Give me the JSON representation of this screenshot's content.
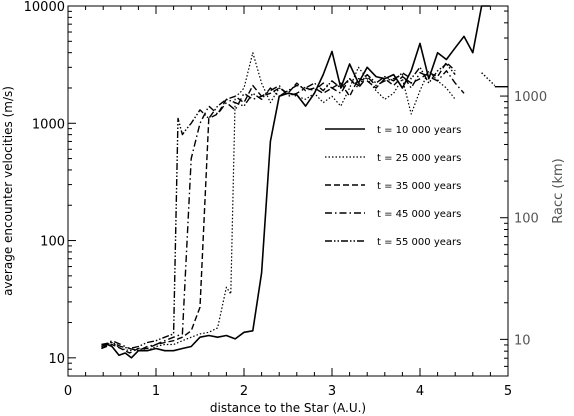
{
  "chart_data": {
    "type": "line",
    "xlabel": "distance to the Star (A.U.)",
    "ylabel": "average encounter velocities (m/s)",
    "ylabel_right": "Racc (km)",
    "xlim": [
      0,
      5
    ],
    "ylim": [
      7,
      10000
    ],
    "yscale": "log",
    "x_ticks": [
      "0",
      "1",
      "2",
      "3",
      "4",
      "5"
    ],
    "y_ticks": [
      "10",
      "100",
      "1000",
      "10000"
    ],
    "right_axis": {
      "ylim": [
        5,
        5500
      ],
      "ticks": [
        "10",
        "100",
        "1000"
      ],
      "tick_values": [
        10,
        100,
        1000
      ]
    },
    "legend_position": "center-right",
    "grid": false,
    "series": [
      {
        "name": "t = 10 000 years",
        "dash": "solid",
        "width": 1.6,
        "x": [
          0.38,
          0.45,
          0.5,
          0.58,
          0.65,
          0.72,
          0.8,
          0.9,
          1.0,
          1.1,
          1.2,
          1.3,
          1.4,
          1.5,
          1.6,
          1.7,
          1.8,
          1.9,
          2.0,
          2.1,
          2.2,
          2.3,
          2.4,
          2.5,
          2.6,
          2.7,
          2.8,
          2.9,
          3.0,
          3.1,
          3.2,
          3.3,
          3.4,
          3.5,
          3.6,
          3.7,
          3.8,
          3.9,
          4.0,
          4.1,
          4.2,
          4.3,
          4.4,
          4.5,
          4.6,
          4.7,
          4.8
        ],
        "y": [
          12,
          13,
          12.5,
          10.5,
          11,
          10,
          11.5,
          11.5,
          12,
          11.5,
          11.5,
          12,
          12.5,
          15,
          15.5,
          15,
          15.5,
          14.5,
          16.5,
          17,
          53,
          700,
          1700,
          1800,
          1750,
          1400,
          1800,
          2600,
          4100,
          2000,
          3200,
          2200,
          3000,
          2500,
          2400,
          2600,
          2000,
          2800,
          4800,
          2400,
          4000,
          3500,
          4400,
          5500,
          4000,
          10000,
          10000
        ]
      },
      {
        "name": "t = 25 000 years",
        "dash": "dotted",
        "width": 1.2,
        "x": [
          0.38,
          0.5,
          0.6,
          0.7,
          0.8,
          0.9,
          1.0,
          1.1,
          1.2,
          1.3,
          1.4,
          1.5,
          1.6,
          1.7,
          1.8,
          1.85,
          1.9,
          1.95,
          2.0,
          2.1,
          2.2,
          2.3,
          2.4,
          2.5,
          2.6,
          2.7,
          2.8,
          2.9,
          3.0,
          3.1,
          3.2,
          3.3,
          3.4,
          3.5,
          3.6,
          3.7,
          3.8,
          3.9,
          4.0,
          4.1,
          4.2,
          4.3,
          4.4
        ],
        "y": [
          12.5,
          13.5,
          12,
          11.5,
          12,
          11.5,
          12.5,
          13,
          13,
          14,
          15,
          16,
          16.5,
          18,
          40,
          35,
          1700,
          1800,
          2000,
          4000,
          2200,
          1500,
          2000,
          1800,
          1700,
          1600,
          1800,
          1500,
          1700,
          1400,
          2000,
          3000,
          2400,
          1900,
          1600,
          1800,
          2400,
          1200,
          1900,
          2800,
          2300,
          2000,
          1600
        ]
      },
      {
        "name": "t = 35 000 years",
        "dash": "dashed",
        "width": 1.4,
        "x": [
          0.38,
          0.5,
          0.6,
          0.7,
          0.8,
          0.9,
          1.0,
          1.1,
          1.2,
          1.3,
          1.4,
          1.5,
          1.6,
          1.7,
          1.8,
          1.9,
          2.0,
          2.1,
          2.2,
          2.3,
          2.4,
          2.5,
          2.6,
          2.7,
          2.8,
          2.9,
          3.0,
          3.1,
          3.2,
          3.3,
          3.4,
          3.5,
          3.6,
          3.7,
          3.8,
          3.9,
          4.0,
          4.1,
          4.2,
          4.3,
          4.4
        ],
        "y": [
          12,
          13,
          12,
          11,
          12,
          12,
          13,
          13.5,
          14,
          15,
          17,
          27,
          1100,
          1200,
          1600,
          1700,
          1500,
          2100,
          1700,
          1800,
          2000,
          1800,
          2200,
          1900,
          2000,
          1800,
          2000,
          2200,
          1700,
          2400,
          2300,
          2000,
          2400,
          2100,
          2500,
          2200,
          2400,
          2700,
          2500,
          3300,
          2800
        ]
      },
      {
        "name": "t = 45 000 years",
        "dash": "dashdot",
        "width": 1.4,
        "x": [
          0.38,
          0.5,
          0.6,
          0.7,
          0.8,
          0.9,
          1.0,
          1.1,
          1.2,
          1.3,
          1.4,
          1.5,
          1.6,
          1.7,
          1.8,
          1.9,
          2.0,
          2.1,
          2.2,
          2.3,
          2.4,
          2.5,
          2.6,
          2.7,
          2.8,
          2.9,
          3.0,
          3.1,
          3.2,
          3.3,
          3.4,
          3.5,
          3.6,
          3.7,
          3.8,
          3.9,
          4.0,
          4.1,
          4.2,
          4.3,
          4.4,
          4.5
        ],
        "y": [
          12.5,
          14,
          13,
          12,
          11.5,
          12.5,
          13,
          14,
          15,
          16,
          500,
          1000,
          1400,
          1200,
          1500,
          1300,
          1800,
          1600,
          1700,
          1900,
          2100,
          1700,
          1800,
          2000,
          1900,
          2200,
          2000,
          1800,
          2400,
          2000,
          2500,
          2100,
          2300,
          2400,
          2600,
          2000,
          2700,
          2500,
          2300,
          2800,
          2200,
          1800
        ]
      },
      {
        "name": "t = 55 000 years",
        "dash": "dashdotdot",
        "width": 1.4,
        "x": [
          0.38,
          0.5,
          0.6,
          0.7,
          0.8,
          0.9,
          1.0,
          1.1,
          1.15,
          1.2,
          1.25,
          1.3,
          1.35,
          1.4,
          1.5,
          1.6,
          1.7,
          1.8,
          1.9,
          2.0,
          2.1,
          2.2,
          2.3,
          2.4,
          2.5,
          2.6,
          2.7,
          2.8,
          2.9,
          3.0,
          3.1,
          3.2,
          3.3,
          3.4,
          3.5,
          3.6,
          3.7,
          3.8,
          3.9,
          4.0,
          4.1,
          4.2,
          4.3,
          4.4
        ],
        "y": [
          13,
          13.5,
          12.5,
          12,
          12.5,
          13.5,
          14,
          15,
          15.5,
          16,
          1100,
          800,
          900,
          1000,
          1300,
          1100,
          1400,
          1600,
          1500,
          1400,
          1800,
          1600,
          2000,
          1700,
          1900,
          2100,
          2000,
          2200,
          1900,
          2300,
          2000,
          2400,
          2100,
          2600,
          2200,
          2500,
          2300,
          2700,
          2400,
          3000,
          2200,
          2800,
          3200,
          2600
        ]
      }
    ],
    "extra_segments": [
      {
        "dash": "solid",
        "x": [
          4.85,
          5.0
        ],
        "y": [
          2050,
          2050
        ]
      },
      {
        "dash": "dotted",
        "x": [
          4.7,
          4.85
        ],
        "y": [
          2700,
          2100
        ]
      }
    ]
  }
}
